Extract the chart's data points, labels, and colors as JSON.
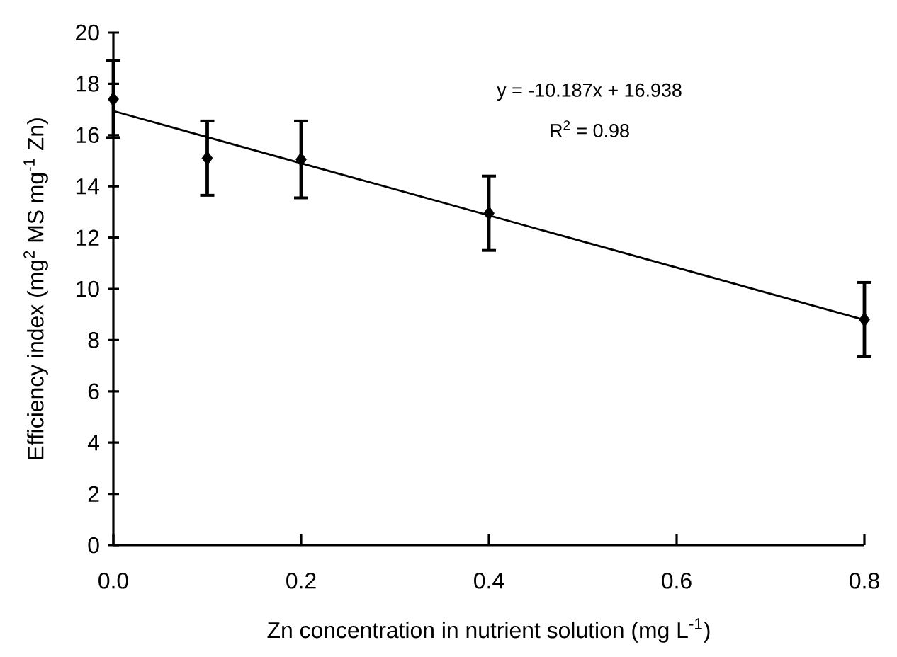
{
  "chart_data": {
    "type": "scatter",
    "xlabel": "Zn concentration in nutrient solution (mg L$^{-1}$)",
    "ylabel": "Efficiency index (mg$^{2}$ MS mg$^{-1}$ Zn)",
    "annotations": [
      "y = -10.187x + 16.938",
      "R$^{2}$ = 0.98"
    ],
    "xlim": [
      0,
      0.8
    ],
    "ylim": [
      0,
      20
    ],
    "xticks": [
      {
        "value": 0,
        "label": "0.0"
      },
      0.2,
      0.4,
      0.6,
      0.8
    ],
    "yticks": [
      0,
      2,
      4,
      6,
      8,
      10,
      12,
      14,
      16,
      18,
      20
    ],
    "marker": "diamond",
    "series": [
      {
        "color": "#000000",
        "x": [
          0,
          0.1,
          0.2,
          0.4,
          0.8
        ],
        "values": [
          17.4,
          15.1,
          15.05,
          12.95,
          8.8
        ],
        "errors": [
          1.5,
          1.45,
          1.5,
          1.45,
          1.45
        ]
      },
      {
        "type": "line",
        "color": "#000000",
        "marker": "none",
        "x": [
          0,
          0.8
        ],
        "values": [
          16.94,
          8.79
        ]
      }
    ]
  }
}
